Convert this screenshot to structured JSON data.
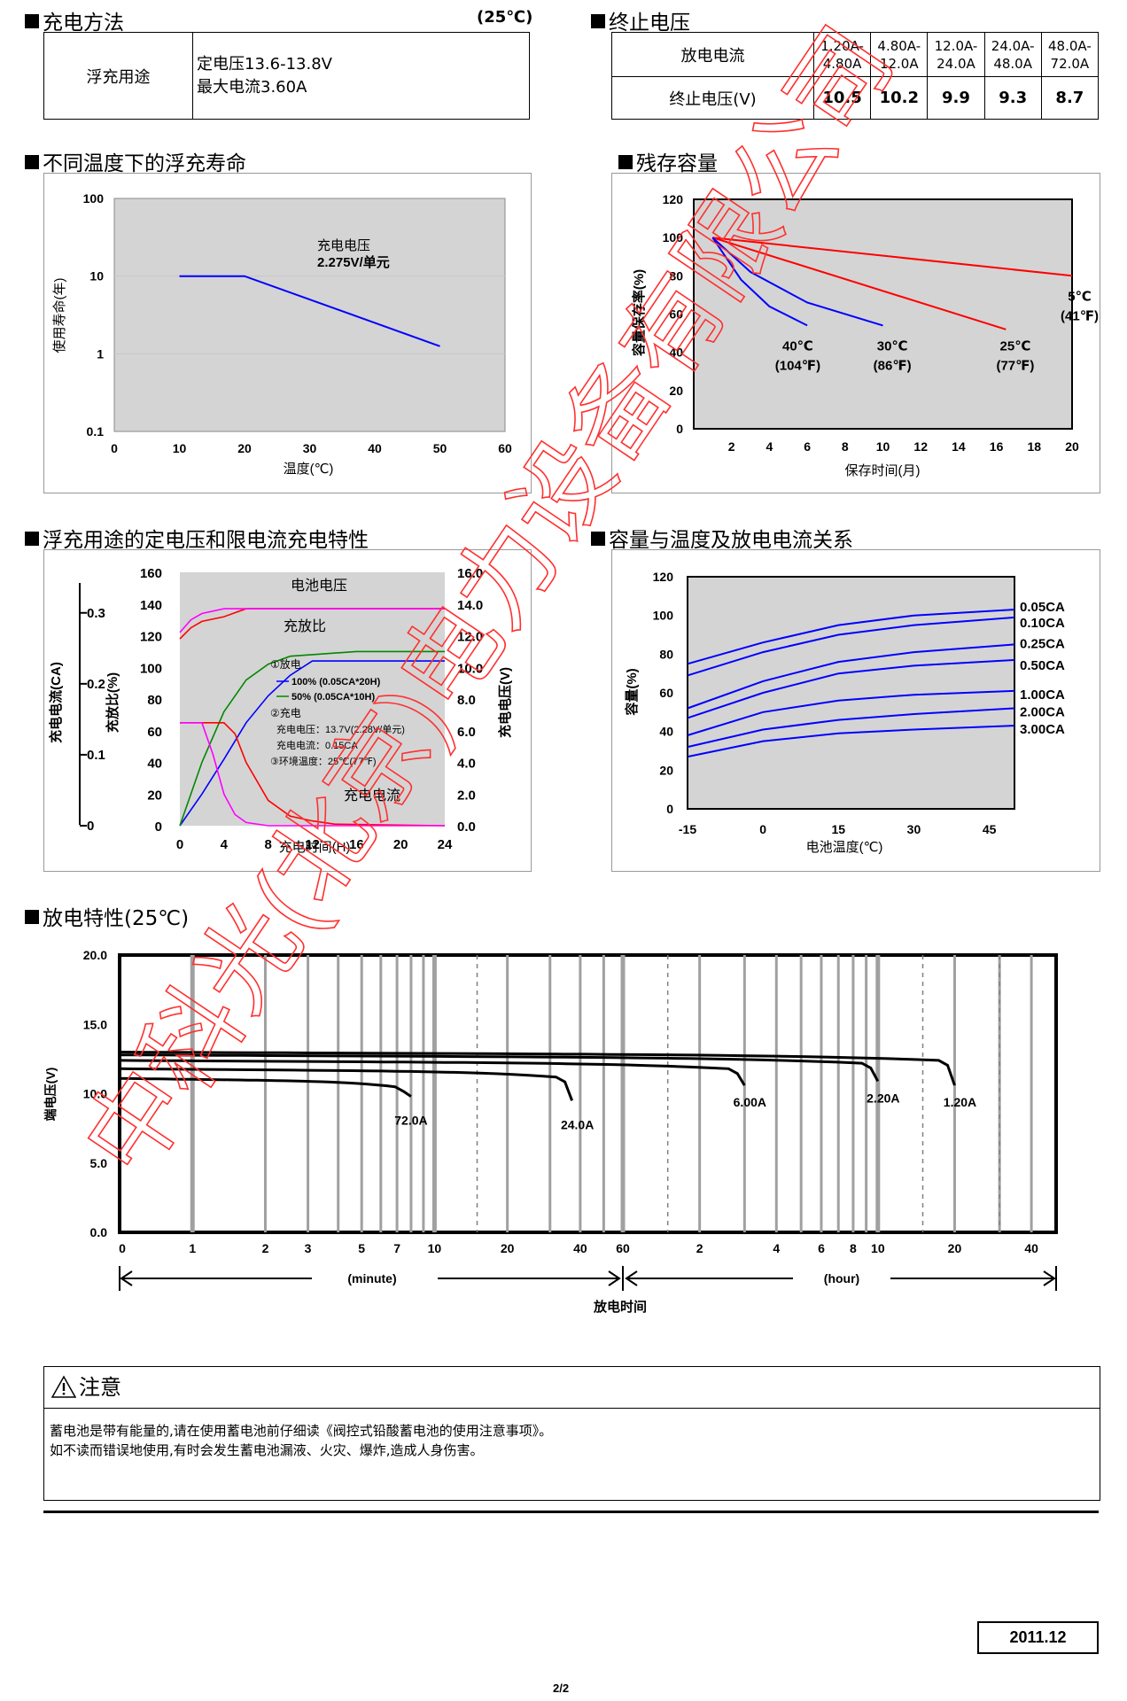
{
  "charging": {
    "title": "充电方法",
    "temp": "(25℃)",
    "usage": "浮充用途",
    "line1": "定电压13.6-13.8V",
    "line2": "最大电流3.60A"
  },
  "cutoff": {
    "title": "终止电压",
    "row1_label": "放电电流",
    "row2_label": "终止电压(V)",
    "ranges": [
      [
        "1.20A-",
        "4.80A"
      ],
      [
        "4.80A-",
        "12.0A"
      ],
      [
        "12.0A-",
        "24.0A"
      ],
      [
        "24.0A-",
        "48.0A"
      ],
      [
        "48.0A-",
        "72.0A"
      ]
    ],
    "voltages": [
      "10.5",
      "10.2",
      "9.9",
      "9.3",
      "8.7"
    ]
  },
  "chart_data": [
    {
      "type": "line",
      "section_title": "不同温度下的浮充寿命",
      "xlabel": "温度(℃)",
      "ylabel": "使用寿命(年)",
      "y_scale": "log",
      "xlim": [
        0,
        60
      ],
      "ylim": [
        0.1,
        100
      ],
      "x_ticks": [
        "0",
        "10",
        "20",
        "30",
        "40",
        "50",
        "60"
      ],
      "y_ticks": [
        "100",
        "10",
        "1",
        "0.1"
      ],
      "annotation": [
        "充电电压",
        "2.275V/单元"
      ],
      "series": [
        {
          "x": [
            10,
            20,
            50
          ],
          "y": [
            10,
            10,
            1.25
          ]
        }
      ]
    },
    {
      "type": "line",
      "section_title": "残存容量",
      "xlabel": "保存时间(月)",
      "ylabel": "容量保存率(%)",
      "xlim": [
        0,
        20
      ],
      "ylim": [
        0,
        120
      ],
      "x_ticks": [
        "2",
        "4",
        "6",
        "8",
        "10",
        "12",
        "14",
        "16",
        "18",
        "20"
      ],
      "y_ticks": [
        "120",
        "100",
        "80",
        "60",
        "40",
        "20",
        "0"
      ],
      "series": [
        {
          "name": "5℃ (41℉)",
          "x": [
            1,
            20
          ],
          "y": [
            100,
            80
          ]
        },
        {
          "name": "25℃ (77℉)",
          "x": [
            1,
            16.5
          ],
          "y": [
            100,
            52
          ]
        },
        {
          "name": "30℃ (86℉)",
          "x": [
            1,
            3,
            6,
            10
          ],
          "y": [
            100,
            82,
            66,
            54
          ]
        },
        {
          "name": "40℃ (104℉)",
          "x": [
            1,
            2.5,
            4,
            6
          ],
          "y": [
            100,
            78,
            64,
            54
          ]
        }
      ],
      "labels": [
        [
          "5℃",
          "(41℉)"
        ],
        [
          "25℃",
          "(77℉)"
        ],
        [
          "30℃",
          "(86℉)"
        ],
        [
          "40℃",
          "(104℉)"
        ]
      ]
    },
    {
      "type": "line",
      "section_title": "浮充用途的定电压和限电流充电特性",
      "xlabel": "充电时间(H)",
      "ylabel_left_outer": "充电电流(CA)",
      "ylabel_left_inner": "充放比(%)",
      "ylabel_right": "充电电压(V)",
      "xlim": [
        0,
        24
      ],
      "x_ticks": [
        "0",
        "4",
        "8",
        "12",
        "16",
        "20",
        "24"
      ],
      "y_ticks_inner": [
        "160",
        "140",
        "120",
        "100",
        "80",
        "60",
        "40",
        "20",
        "0"
      ],
      "y_ticks_right": [
        "16.0",
        "14.0",
        "12.0",
        "10.0",
        "8.0",
        "6.0",
        "4.0",
        "2.0",
        "0.0"
      ],
      "y_ticks_outer": [
        "0.3",
        "0.2",
        "0.1",
        "0"
      ],
      "label_voltage": "电池电压",
      "label_ratio": "充放比",
      "label_current": "充电电流",
      "legend": [
        "①放电",
        "100% (0.05CA*20H)",
        "50% (0.05CA*10H)",
        "②充电",
        "充电电压：13.7V(2.28V/单元)",
        "充电电流：0.15CA",
        "③环境温度：25℃(77℉)"
      ],
      "series": [
        {
          "name": "电池电压 100%",
          "color": "#ff0000",
          "x": [
            0,
            1,
            2,
            4,
            6,
            24
          ],
          "y": [
            118,
            125,
            129,
            132,
            137,
            137
          ]
        },
        {
          "name": "电池电压 50%",
          "color": "#ff00ff",
          "x": [
            0,
            1,
            2,
            4,
            6,
            24
          ],
          "y": [
            122,
            130,
            134,
            137,
            137,
            137
          ]
        },
        {
          "name": "充放比 100%",
          "color": "#0000ff",
          "x": [
            0,
            2,
            4,
            6,
            8,
            10,
            12,
            24
          ],
          "y": [
            0,
            20,
            42,
            65,
            82,
            95,
            104,
            104
          ]
        },
        {
          "name": "充放比 50%",
          "color": "#008800",
          "x": [
            0,
            2,
            4,
            6,
            8,
            10,
            12,
            16,
            24
          ],
          "y": [
            0,
            40,
            72,
            92,
            102,
            107,
            108,
            110,
            110
          ]
        },
        {
          "name": "充电电流 100%",
          "color": "#ff0000",
          "x": [
            0,
            4,
            5,
            6,
            8,
            10,
            12,
            14,
            24
          ],
          "y": [
            65,
            65,
            58,
            40,
            16,
            6,
            3,
            1,
            0
          ]
        },
        {
          "name": "充电电流 50%",
          "color": "#ff00ff",
          "x": [
            0,
            2,
            3,
            4,
            5,
            6,
            8,
            24
          ],
          "y": [
            65,
            65,
            45,
            20,
            7,
            2,
            0,
            0
          ]
        }
      ]
    },
    {
      "type": "line",
      "section_title": "容量与温度及放电电流关系",
      "xlabel": "电池温度(℃)",
      "ylabel": "容量(%)",
      "xlim": [
        -15,
        50
      ],
      "ylim": [
        0,
        120
      ],
      "x_ticks": [
        "-15",
        "0",
        "15",
        "30",
        "45"
      ],
      "y_ticks": [
        "120",
        "100",
        "80",
        "60",
        "40",
        "20",
        "0"
      ],
      "series": [
        {
          "name": "0.05CA",
          "x": [
            -15,
            0,
            15,
            30,
            50
          ],
          "y": [
            75,
            86,
            95,
            100,
            103
          ]
        },
        {
          "name": "0.10CA",
          "x": [
            -15,
            0,
            15,
            30,
            50
          ],
          "y": [
            69,
            81,
            90,
            95,
            99
          ]
        },
        {
          "name": "0.25CA",
          "x": [
            -15,
            0,
            15,
            30,
            50
          ],
          "y": [
            52,
            66,
            76,
            81,
            85
          ]
        },
        {
          "name": "0.50CA",
          "x": [
            -15,
            0,
            15,
            30,
            50
          ],
          "y": [
            47,
            60,
            70,
            74,
            77
          ]
        },
        {
          "name": "1.00CA",
          "x": [
            -15,
            0,
            15,
            30,
            50
          ],
          "y": [
            38,
            50,
            56,
            59,
            61
          ]
        },
        {
          "name": "2.00CA",
          "x": [
            -15,
            0,
            15,
            30,
            50
          ],
          "y": [
            32,
            41,
            46,
            49,
            52
          ]
        },
        {
          "name": "3.00CA",
          "x": [
            -15,
            0,
            15,
            30,
            50
          ],
          "y": [
            27,
            35,
            39,
            41,
            43
          ]
        }
      ]
    },
    {
      "type": "line",
      "section_title": "放电特性(25℃)",
      "xlabel": "放电时间",
      "ylabel": "端电压(V)",
      "ylim": [
        0,
        20
      ],
      "y_ticks": [
        "20.0",
        "15.0",
        "10.0",
        "5.0",
        "0.0"
      ],
      "x_ticks_minute": [
        "0",
        "1",
        "2",
        "3",
        "5",
        "7",
        "10",
        "20",
        "40",
        "60"
      ],
      "x_ticks_hour": [
        "2",
        "4",
        "6",
        "8",
        "10",
        "20",
        "40"
      ],
      "x_unit_minute": "(minute)",
      "x_unit_hour": "(hour)",
      "series": [
        {
          "name": "72.0A",
          "end_minutes": 8,
          "end_voltage": 9.8
        },
        {
          "name": "24.0A",
          "end_minutes": 37,
          "end_voltage": 9.5
        },
        {
          "name": "6.00A",
          "end_minutes": 180,
          "end_voltage": 10.6
        },
        {
          "name": "2.20A",
          "end_minutes": 600,
          "end_voltage": 10.9
        },
        {
          "name": "1.20A",
          "end_minutes": 1200,
          "end_voltage": 10.6
        }
      ]
    }
  ],
  "watermark": "中科光(北京)电力设备有限公司",
  "notice": {
    "title": "注意",
    "line1": "蓄电池是带有能量的,请在使用蓄电池前仔细读《阀控式铅酸蓄电池的使用注意事项》。",
    "line2": "如不读而错误地使用,有时会发生蓄电池漏液、火灾、爆炸,造成人身伤害。"
  },
  "date": "2011.12",
  "page": "2/2"
}
